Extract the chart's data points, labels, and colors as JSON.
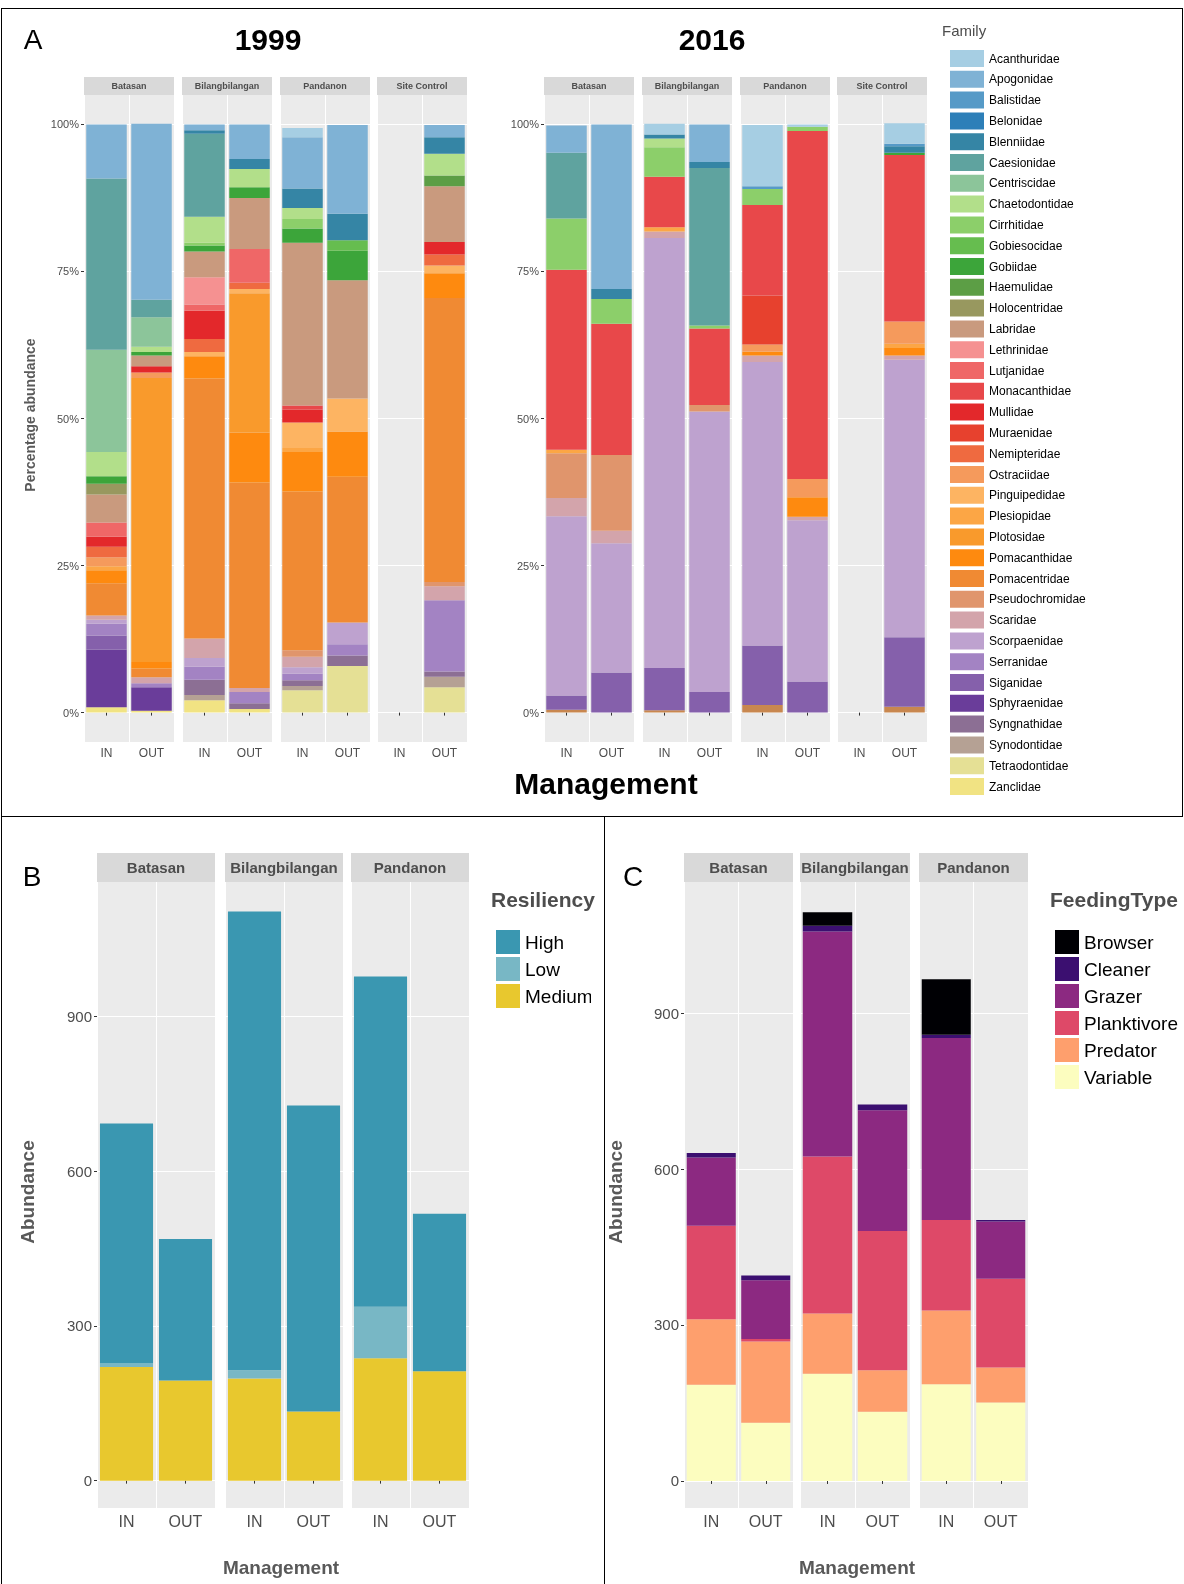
{
  "chart_data": [
    {
      "type": "bar",
      "title": "Batasan",
      "ylabel": "Percentage abundance",
      "annotations": [
        "A",
        "1999"
      ],
      "categories": [
        "IN",
        "OUT"
      ],
      "stacked": true,
      "grid": true,
      "ylim": [
        -5,
        105
      ],
      "yticks": [
        {
          "value": 0,
          "label": "0%"
        },
        {
          "value": 25,
          "label": "25%"
        },
        {
          "value": 50,
          "label": "50%"
        },
        {
          "value": 75,
          "label": "75%"
        },
        {
          "value": 100,
          "label": "100%"
        }
      ],
      "series": [
        {
          "color": "#f1e383",
          "values": [
            0.9,
            0.3
          ]
        },
        {
          "color": "#6a3d9a",
          "values": [
            9.8,
            4.0
          ]
        },
        {
          "color": "#8560ab",
          "values": [
            2.4,
            null
          ]
        },
        {
          "color": "#a383c3",
          "values": [
            2.0,
            0.7
          ]
        },
        {
          "color": "#bea2cf",
          "values": [
            0.7,
            null
          ]
        },
        {
          "color": "#d3a4ab",
          "values": [
            0.7,
            1.0
          ]
        },
        {
          "color": "#f08a33",
          "values": [
            5.5,
            1.5
          ]
        },
        {
          "color": "#fe8a0f",
          "values": [
            2.2,
            1.1
          ]
        },
        {
          "color": "#f99a2c",
          "values": [
            null,
            48.3
          ]
        },
        {
          "color": "#fca645",
          "values": [
            0.7,
            null
          ]
        },
        {
          "color": "#f59a5c",
          "values": [
            1.5,
            0.9
          ]
        },
        {
          "color": "#ef6a40",
          "values": [
            1.8,
            null
          ]
        },
        {
          "color": "#e3282b",
          "values": [
            1.7,
            1.1
          ]
        },
        {
          "color": "#ef6767",
          "values": [
            2.4,
            null
          ]
        },
        {
          "color": "#c99a7e",
          "values": [
            4.8,
            1.8
          ]
        },
        {
          "color": "#98985f",
          "values": [
            1.8,
            null
          ]
        },
        {
          "color": "#3ca53a",
          "values": [
            1.3,
            0.6
          ]
        },
        {
          "color": "#b2df8a",
          "values": [
            4.1,
            0.9
          ]
        },
        {
          "color": "#8cc59a",
          "values": [
            17.4,
            5.0
          ]
        },
        {
          "color": "#5fa39f",
          "values": [
            29.1,
            3.0
          ]
        },
        {
          "color": "#7fb2d5",
          "values": [
            9.2,
            29.9
          ]
        }
      ]
    },
    {
      "type": "bar",
      "title": "Bilangbilangan",
      "categories": [
        "IN",
        "OUT"
      ],
      "stacked": true,
      "grid": true,
      "tick_labels": "x",
      "ylim": [
        -5,
        105
      ],
      "yticks": [
        0,
        25,
        50,
        75,
        100
      ],
      "series": [
        {
          "color": "#f1e383",
          "values": [
            2.1,
            0.6
          ]
        },
        {
          "color": "#b5a194",
          "values": [
            0.9,
            null
          ]
        },
        {
          "color": "#8c6f94",
          "values": [
            2.6,
            1.0
          ]
        },
        {
          "color": "#a383c3",
          "values": [
            2.2,
            1.9
          ]
        },
        {
          "color": "#bea2cf",
          "values": [
            1.5,
            null
          ]
        },
        {
          "color": "#d3a4ab",
          "values": [
            3.3,
            0.7
          ]
        },
        {
          "color": "#f08a33",
          "values": [
            44.2,
            34.9
          ]
        },
        {
          "color": "#fe8a0f",
          "values": [
            3.8,
            8.5
          ]
        },
        {
          "color": "#f99a2c",
          "values": [
            null,
            23.7
          ]
        },
        {
          "color": "#fdb462",
          "values": [
            0.7,
            0.7
          ]
        },
        {
          "color": "#ef6a40",
          "values": [
            2.2,
            1.1
          ]
        },
        {
          "color": "#e3282b",
          "values": [
            4.8,
            null
          ]
        },
        {
          "color": "#ef6767",
          "values": [
            1.1,
            5.7
          ]
        },
        {
          "color": "#f59191",
          "values": [
            4.6,
            null
          ]
        },
        {
          "color": "#c99a7e",
          "values": [
            4.4,
            8.7
          ]
        },
        {
          "color": "#3ca53a",
          "values": [
            1.0,
            1.8
          ]
        },
        {
          "color": "#8ccf6a",
          "values": [
            0.5,
            null
          ]
        },
        {
          "color": "#b2df8a",
          "values": [
            4.4,
            3.1
          ]
        },
        {
          "color": "#5fa39f",
          "values": [
            14.1,
            null
          ]
        },
        {
          "color": "#3585a5",
          "values": [
            0.6,
            1.7
          ]
        },
        {
          "color": "#7fb2d5",
          "values": [
            1.0,
            5.9
          ]
        }
      ]
    },
    {
      "type": "bar",
      "title": "Pandanon",
      "categories": [
        "IN",
        "OUT"
      ],
      "stacked": true,
      "grid": true,
      "tick_labels": "x",
      "ylim": [
        -5,
        105
      ],
      "yticks": [
        0,
        25,
        50,
        75,
        100
      ],
      "series": [
        {
          "color": "#e5e095",
          "values": [
            3.8,
            7.9
          ]
        },
        {
          "color": "#b5a194",
          "values": [
            0.7,
            null
          ]
        },
        {
          "color": "#8c6f94",
          "values": [
            1.0,
            1.8
          ]
        },
        {
          "color": "#a383c3",
          "values": [
            1.1,
            1.9
          ]
        },
        {
          "color": "#bea2cf",
          "values": [
            1.1,
            3.7
          ]
        },
        {
          "color": "#d3a4ab",
          "values": [
            1.8,
            null
          ]
        },
        {
          "color": "#e0956c",
          "values": [
            1.1,
            null
          ]
        },
        {
          "color": "#f08a33",
          "values": [
            27.0,
            24.8
          ]
        },
        {
          "color": "#fe8a0f",
          "values": [
            6.7,
            7.7
          ]
        },
        {
          "color": "#fca645",
          "values": [
            0.7,
            null
          ]
        },
        {
          "color": "#fdb462",
          "values": [
            4.3,
            5.6
          ]
        },
        {
          "color": "#e3282b",
          "values": [
            2.2,
            null
          ]
        },
        {
          "color": "#e8484a",
          "values": [
            0.7,
            null
          ]
        },
        {
          "color": "#c99a7e",
          "values": [
            27.7,
            20.1
          ]
        },
        {
          "color": "#3ca53a",
          "values": [
            2.4,
            5.0
          ]
        },
        {
          "color": "#66bd4f",
          "values": [
            null,
            1.8
          ]
        },
        {
          "color": "#8ccf6a",
          "values": [
            1.6,
            null
          ]
        },
        {
          "color": "#b2df8a",
          "values": [
            1.9,
            null
          ]
        },
        {
          "color": "#3585a5",
          "values": [
            3.3,
            4.5
          ]
        },
        {
          "color": "#7fb2d5",
          "values": [
            8.7,
            15.1
          ]
        },
        {
          "color": "#a6cee3",
          "values": [
            1.6,
            null
          ]
        }
      ]
    },
    {
      "type": "bar",
      "title": "Site Control",
      "categories": [
        "IN",
        "OUT"
      ],
      "stacked": true,
      "grid": true,
      "tick_labels": "x",
      "ylim": [
        -5,
        105
      ],
      "yticks": [
        0,
        25,
        50,
        75,
        100
      ],
      "series": [
        {
          "color": "#e5e095",
          "values": [
            null,
            4.3
          ]
        },
        {
          "color": "#b5a194",
          "values": [
            null,
            1.8
          ]
        },
        {
          "color": "#8c6f94",
          "values": [
            null,
            0.9
          ]
        },
        {
          "color": "#a383c3",
          "values": [
            null,
            12.1
          ]
        },
        {
          "color": "#d3a4ab",
          "values": [
            null,
            2.4
          ]
        },
        {
          "color": "#e0956c",
          "values": [
            null,
            0.7
          ]
        },
        {
          "color": "#f08a33",
          "values": [
            null,
            48.3
          ]
        },
        {
          "color": "#fe8a0f",
          "values": [
            null,
            4.2
          ]
        },
        {
          "color": "#fdb462",
          "values": [
            null,
            1.3
          ]
        },
        {
          "color": "#ef6a40",
          "values": [
            null,
            1.9
          ]
        },
        {
          "color": "#e3282b",
          "values": [
            null,
            2.1
          ]
        },
        {
          "color": "#c99a7e",
          "values": [
            null,
            9.5
          ]
        },
        {
          "color": "#5c9e45",
          "values": [
            null,
            1.8
          ]
        },
        {
          "color": "#b2df8a",
          "values": [
            null,
            3.7
          ]
        },
        {
          "color": "#3585a5",
          "values": [
            null,
            2.8
          ]
        },
        {
          "color": "#7fb2d5",
          "values": [
            null,
            2.1
          ]
        }
      ]
    },
    {
      "type": "bar",
      "title": "Batasan",
      "annotations": [
        "2016"
      ],
      "xlabel": "Management",
      "categories": [
        "IN",
        "OUT"
      ],
      "stacked": true,
      "grid": true,
      "ylim": [
        -5,
        105
      ],
      "yticks": [
        {
          "value": 0,
          "label": "0%"
        },
        {
          "value": 25,
          "label": "25%"
        },
        {
          "value": 50,
          "label": "50%"
        },
        {
          "value": 75,
          "label": "75%"
        },
        {
          "value": 100,
          "label": "100%"
        }
      ],
      "series": [
        {
          "color": "#c8874f",
          "values": [
            0.5,
            null
          ]
        },
        {
          "color": "#8560ab",
          "values": [
            2.4,
            6.8
          ]
        },
        {
          "color": "#bea2cf",
          "values": [
            30.5,
            22.0
          ]
        },
        {
          "color": "#d3a4ab",
          "values": [
            3.1,
            2.1
          ]
        },
        {
          "color": "#e0956c",
          "values": [
            7.6,
            12.9
          ]
        },
        {
          "color": "#fca645",
          "values": [
            0.6,
            null
          ]
        },
        {
          "color": "#e8484a",
          "values": [
            30.6,
            22.3
          ]
        },
        {
          "color": "#8ccf6a",
          "values": [
            8.7,
            4.2
          ]
        },
        {
          "color": "#5fa39f",
          "values": [
            11.2,
            null
          ]
        },
        {
          "color": "#3585a5",
          "values": [
            null,
            1.7
          ]
        },
        {
          "color": "#7fb2d5",
          "values": [
            4.6,
            28.0
          ]
        }
      ]
    },
    {
      "type": "bar",
      "title": "Bilangbilangan",
      "categories": [
        "IN",
        "OUT"
      ],
      "stacked": true,
      "grid": true,
      "tick_labels": "x",
      "ylim": [
        -5,
        105
      ],
      "yticks": [
        0,
        25,
        50,
        75,
        100
      ],
      "series": [
        {
          "color": "#c8874f",
          "values": [
            0.4,
            null
          ]
        },
        {
          "color": "#8560ab",
          "values": [
            7.2,
            3.5
          ]
        },
        {
          "color": "#bea2cf",
          "values": [
            73.1,
            47.7
          ]
        },
        {
          "color": "#d3a4ab",
          "values": [
            1.1,
            null
          ]
        },
        {
          "color": "#e0956c",
          "values": [
            null,
            1.1
          ]
        },
        {
          "color": "#fca645",
          "values": [
            0.7,
            null
          ]
        },
        {
          "color": "#e8484a",
          "values": [
            8.6,
            13.0
          ]
        },
        {
          "color": "#8ccf6a",
          "values": [
            5.0,
            0.5
          ]
        },
        {
          "color": "#b2df8a",
          "values": [
            1.5,
            null
          ]
        },
        {
          "color": "#5fa39f",
          "values": [
            null,
            26.8
          ]
        },
        {
          "color": "#3585a5",
          "values": [
            0.7,
            1.0
          ]
        },
        {
          "color": "#7fb2d5",
          "values": [
            null,
            6.4
          ]
        },
        {
          "color": "#a6cee3",
          "values": [
            1.8,
            null
          ]
        }
      ]
    },
    {
      "type": "bar",
      "title": "Pandanon",
      "categories": [
        "IN",
        "OUT"
      ],
      "stacked": true,
      "grid": true,
      "tick_labels": "x",
      "ylim": [
        -5,
        105
      ],
      "yticks": [
        0,
        25,
        50,
        75,
        100
      ],
      "series": [
        {
          "color": "#c8874f",
          "values": [
            1.3,
            null
          ]
        },
        {
          "color": "#8560ab",
          "values": [
            10.1,
            5.3
          ]
        },
        {
          "color": "#bea2cf",
          "values": [
            48.2,
            27.4
          ]
        },
        {
          "color": "#d3a4ab",
          "values": [
            1.1,
            0.6
          ]
        },
        {
          "color": "#fe8a0f",
          "values": [
            0.7,
            3.3
          ]
        },
        {
          "color": "#f59a5c",
          "values": [
            1.2,
            3.1
          ]
        },
        {
          "color": "#e7412e",
          "values": [
            8.3,
            null
          ]
        },
        {
          "color": "#e8484a",
          "values": [
            15.4,
            59.2
          ]
        },
        {
          "color": "#8ccf6a",
          "values": [
            2.7,
            0.7
          ]
        },
        {
          "color": "#569ac7",
          "values": [
            0.5,
            null
          ]
        },
        {
          "color": "#a6cee3",
          "values": [
            10.4,
            0.4
          ]
        }
      ]
    },
    {
      "type": "bar",
      "title": "Site Control",
      "legend_title": "Family",
      "legend": "right",
      "categories": [
        "IN",
        "OUT"
      ],
      "stacked": true,
      "grid": true,
      "tick_labels": "x",
      "ylim": [
        -5,
        105
      ],
      "yticks": [
        0,
        25,
        50,
        75,
        100
      ],
      "series": [
        {
          "color": "#c8874f",
          "values": [
            null,
            1.0
          ]
        },
        {
          "name": "Zanclidae",
          "color": "#f1e383",
          "values": [
            null,
            null
          ]
        },
        {
          "name": "Tetraodontidae",
          "color": "#e5e095",
          "values": [
            null,
            null
          ]
        },
        {
          "name": "Synodontidae",
          "color": "#b5a194",
          "values": [
            null,
            null
          ]
        },
        {
          "name": "Syngnathidae",
          "color": "#8c6f94",
          "values": [
            null,
            null
          ]
        },
        {
          "name": "Sphyraenidae",
          "color": "#6a3d9a",
          "values": [
            null,
            null
          ]
        },
        {
          "name": "Siganidae",
          "color": "#8560ab",
          "values": [
            null,
            11.8
          ]
        },
        {
          "name": "Serranidae",
          "color": "#a383c3",
          "values": [
            null,
            null
          ]
        },
        {
          "name": "Scorpaenidae",
          "color": "#bea2cf",
          "values": [
            null,
            47.2
          ]
        },
        {
          "name": "Scaridae",
          "color": "#d3a4ab",
          "values": [
            null,
            0.7
          ]
        },
        {
          "name": "Pseudochromidae",
          "color": "#e0956c",
          "values": [
            null,
            null
          ]
        },
        {
          "name": "Pomacentridae",
          "color": "#f08a33",
          "values": [
            null,
            null
          ]
        },
        {
          "name": "Pomacanthidae",
          "color": "#fe8a0f",
          "values": [
            null,
            1.3
          ]
        },
        {
          "name": "Plotosidae",
          "color": "#f99a2c",
          "values": [
            null,
            null
          ]
        },
        {
          "name": "Plesiopidae",
          "color": "#fca645",
          "values": [
            null,
            0.7
          ]
        },
        {
          "name": "Pinguipedidae",
          "color": "#fdb462",
          "values": [
            null,
            null
          ]
        },
        {
          "name": "Ostraciidae",
          "color": "#f59a5c",
          "values": [
            null,
            3.8
          ]
        },
        {
          "name": "Nemipteridae",
          "color": "#ef6a40",
          "values": [
            null,
            null
          ]
        },
        {
          "name": "Muraenidae",
          "color": "#e7412e",
          "values": [
            null,
            null
          ]
        },
        {
          "name": "Mullidae",
          "color": "#e3282b",
          "values": [
            null,
            null
          ]
        },
        {
          "name": "Monacanthidae",
          "color": "#e8484a",
          "values": [
            null,
            28.3
          ]
        },
        {
          "name": "Lutjanidae",
          "color": "#ef6767",
          "values": [
            null,
            null
          ]
        },
        {
          "name": "Lethrinidae",
          "color": "#f59191",
          "values": [
            null,
            null
          ]
        },
        {
          "name": "Labridae",
          "color": "#c99a7e",
          "values": [
            null,
            null
          ]
        },
        {
          "name": "Holocentridae",
          "color": "#98985f",
          "values": [
            null,
            null
          ]
        },
        {
          "name": "Haemulidae",
          "color": "#5c9e45",
          "values": [
            null,
            null
          ]
        },
        {
          "name": "Gobiidae",
          "color": "#3ca53a",
          "values": [
            null,
            0.4
          ]
        },
        {
          "name": "Gobiesocidae",
          "color": "#66bd4f",
          "values": [
            null,
            null
          ]
        },
        {
          "name": "Cirrhitidae",
          "color": "#8ccf6a",
          "values": [
            null,
            null
          ]
        },
        {
          "name": "Chaetodontidae",
          "color": "#b2df8a",
          "values": [
            null,
            null
          ]
        },
        {
          "name": "Centriscidae",
          "color": "#8cc59a",
          "values": [
            null,
            null
          ]
        },
        {
          "name": "Caesionidae",
          "color": "#5fa39f",
          "values": [
            null,
            null
          ]
        },
        {
          "name": "Blenniidae",
          "color": "#3585a5",
          "values": [
            null,
            1.1
          ]
        },
        {
          "name": "Belonidae",
          "color": "#2d7fb8",
          "values": [
            null,
            null
          ]
        },
        {
          "name": "Balistidae",
          "color": "#569ac7",
          "values": [
            null,
            0.4
          ]
        },
        {
          "name": "Apogonidae",
          "color": "#7fb2d5",
          "values": [
            null,
            null
          ]
        },
        {
          "name": "Acanthuridae",
          "color": "#a6cee3",
          "values": [
            null,
            3.5
          ]
        }
      ]
    },
    {
      "type": "bar",
      "title": "Batasan",
      "ylabel": "Abundance",
      "annotations": [
        "B"
      ],
      "categories": [
        "IN",
        "OUT"
      ],
      "stacked": true,
      "grid": true,
      "ylim": [
        -53,
        1160
      ],
      "yticks": [
        0,
        300,
        600,
        900
      ],
      "series": [
        {
          "color": "#e8c82e",
          "values": [
            220,
            194
          ]
        },
        {
          "color": "#78b7c5",
          "values": [
            8,
            null
          ]
        },
        {
          "color": "#3a97b1",
          "values": [
            464,
            274
          ]
        }
      ]
    },
    {
      "type": "bar",
      "title": "Bilangbilangan",
      "xlabel": "Management",
      "categories": [
        "IN",
        "OUT"
      ],
      "stacked": true,
      "grid": true,
      "tick_labels": "x",
      "ylim": [
        -53,
        1160
      ],
      "yticks": [
        0,
        300,
        600,
        900
      ],
      "series": [
        {
          "color": "#e8c82e",
          "values": [
            198,
            134
          ]
        },
        {
          "color": "#78b7c5",
          "values": [
            16,
            null
          ]
        },
        {
          "color": "#3a97b1",
          "values": [
            889,
            593
          ]
        }
      ]
    },
    {
      "type": "bar",
      "title": "Pandanon",
      "legend_title": "Resiliency",
      "legend": "right",
      "categories": [
        "IN",
        "OUT"
      ],
      "stacked": true,
      "grid": true,
      "tick_labels": "x",
      "ylim": [
        -53,
        1160
      ],
      "yticks": [
        0,
        300,
        600,
        900
      ],
      "series": [
        {
          "name": "Medium",
          "color": "#e8c82e",
          "values": [
            237,
            212
          ]
        },
        {
          "name": "Low",
          "color": "#78b7c5",
          "values": [
            100,
            null
          ]
        },
        {
          "name": "High",
          "color": "#3a97b1",
          "values": [
            640,
            305
          ]
        }
      ]
    },
    {
      "type": "bar",
      "title": "Batasan",
      "ylabel": "Abundance",
      "annotations": [
        "C"
      ],
      "categories": [
        "IN",
        "OUT"
      ],
      "stacked": true,
      "grid": true,
      "ylim": [
        -52,
        1152
      ],
      "yticks": [
        0,
        300,
        600,
        900
      ],
      "series": [
        {
          "color": "#fcfdbf",
          "values": [
            185,
            112
          ]
        },
        {
          "color": "#fe9f6d",
          "values": [
            126,
            156
          ]
        },
        {
          "color": "#de4968",
          "values": [
            180,
            5
          ]
        },
        {
          "color": "#8c2981",
          "values": [
            131,
            113
          ]
        },
        {
          "color": "#3b0f70",
          "values": [
            9,
            9
          ]
        }
      ]
    },
    {
      "type": "bar",
      "title": "Bilangbilangan",
      "xlabel": "Management",
      "categories": [
        "IN",
        "OUT"
      ],
      "stacked": true,
      "grid": true,
      "tick_labels": "x",
      "ylim": [
        -52,
        1152
      ],
      "yticks": [
        0,
        300,
        600,
        900
      ],
      "series": [
        {
          "color": "#fcfdbf",
          "values": [
            206,
            133
          ]
        },
        {
          "color": "#fe9f6d",
          "values": [
            116,
            80
          ]
        },
        {
          "color": "#de4968",
          "values": [
            302,
            268
          ]
        },
        {
          "color": "#8c2981",
          "values": [
            433,
            232
          ]
        },
        {
          "color": "#3b0f70",
          "values": [
            11,
            11
          ]
        },
        {
          "color": "#000004",
          "values": [
            26,
            null
          ]
        }
      ]
    },
    {
      "type": "bar",
      "title": "Pandanon",
      "legend_title": "FeedingType",
      "legend": "right",
      "categories": [
        "IN",
        "OUT"
      ],
      "stacked": true,
      "grid": true,
      "tick_labels": "x",
      "ylim": [
        -52,
        1152
      ],
      "yticks": [
        0,
        300,
        600,
        900
      ],
      "series": [
        {
          "name": "Variable",
          "color": "#fcfdbf",
          "values": [
            186,
            151
          ]
        },
        {
          "name": "Predator",
          "color": "#fe9f6d",
          "values": [
            142,
            67
          ]
        },
        {
          "name": "Planktivore",
          "color": "#de4968",
          "values": [
            174,
            171
          ]
        },
        {
          "name": "Grazer",
          "color": "#8c2981",
          "values": [
            350,
            110
          ]
        },
        {
          "name": "Cleaner",
          "color": "#3b0f70",
          "values": [
            6,
            3
          ]
        },
        {
          "name": "Browser",
          "color": "#000004",
          "values": [
            107,
            null
          ]
        }
      ]
    }
  ]
}
